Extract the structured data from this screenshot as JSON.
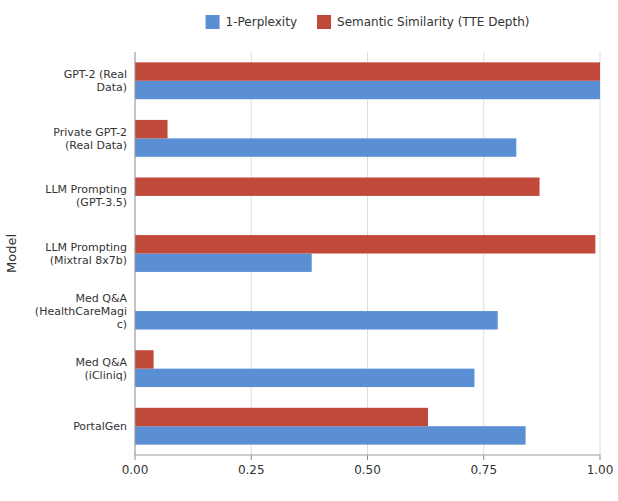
{
  "chart_data": {
    "type": "bar",
    "orientation": "horizontal",
    "categories": [
      "GPT-2 (Real\nData)",
      "Private GPT-2\n(Real Data)",
      "LLM Prompting\n(GPT-3.5)",
      "LLM Prompting\n(Mixtral 8x7b)",
      "Med Q&A\n(HealthCareMagi\nc)",
      "Med Q&A\n(iCliniq)",
      "PortalGen"
    ],
    "series": [
      {
        "name": "1-Perplexity",
        "color": "#5B8FD4",
        "values": [
          1.0,
          0.82,
          0.0,
          0.38,
          0.78,
          0.73,
          0.84
        ]
      },
      {
        "name": "Semantic Similarity (TTE Depth)",
        "color": "#C0493A",
        "values": [
          1.0,
          0.07,
          0.87,
          0.99,
          0.0,
          0.04,
          0.63
        ]
      }
    ],
    "ylabel": "Model",
    "xlim": [
      0,
      1.0
    ],
    "xticks": [
      {
        "value": 0.0,
        "label": "0.00"
      },
      {
        "value": 0.25,
        "label": "0.25"
      },
      {
        "value": 0.5,
        "label": "0.50"
      },
      {
        "value": 0.75,
        "label": "0.75"
      },
      {
        "value": 1.0,
        "label": "1.00"
      }
    ],
    "grid": true,
    "legend": "top"
  }
}
